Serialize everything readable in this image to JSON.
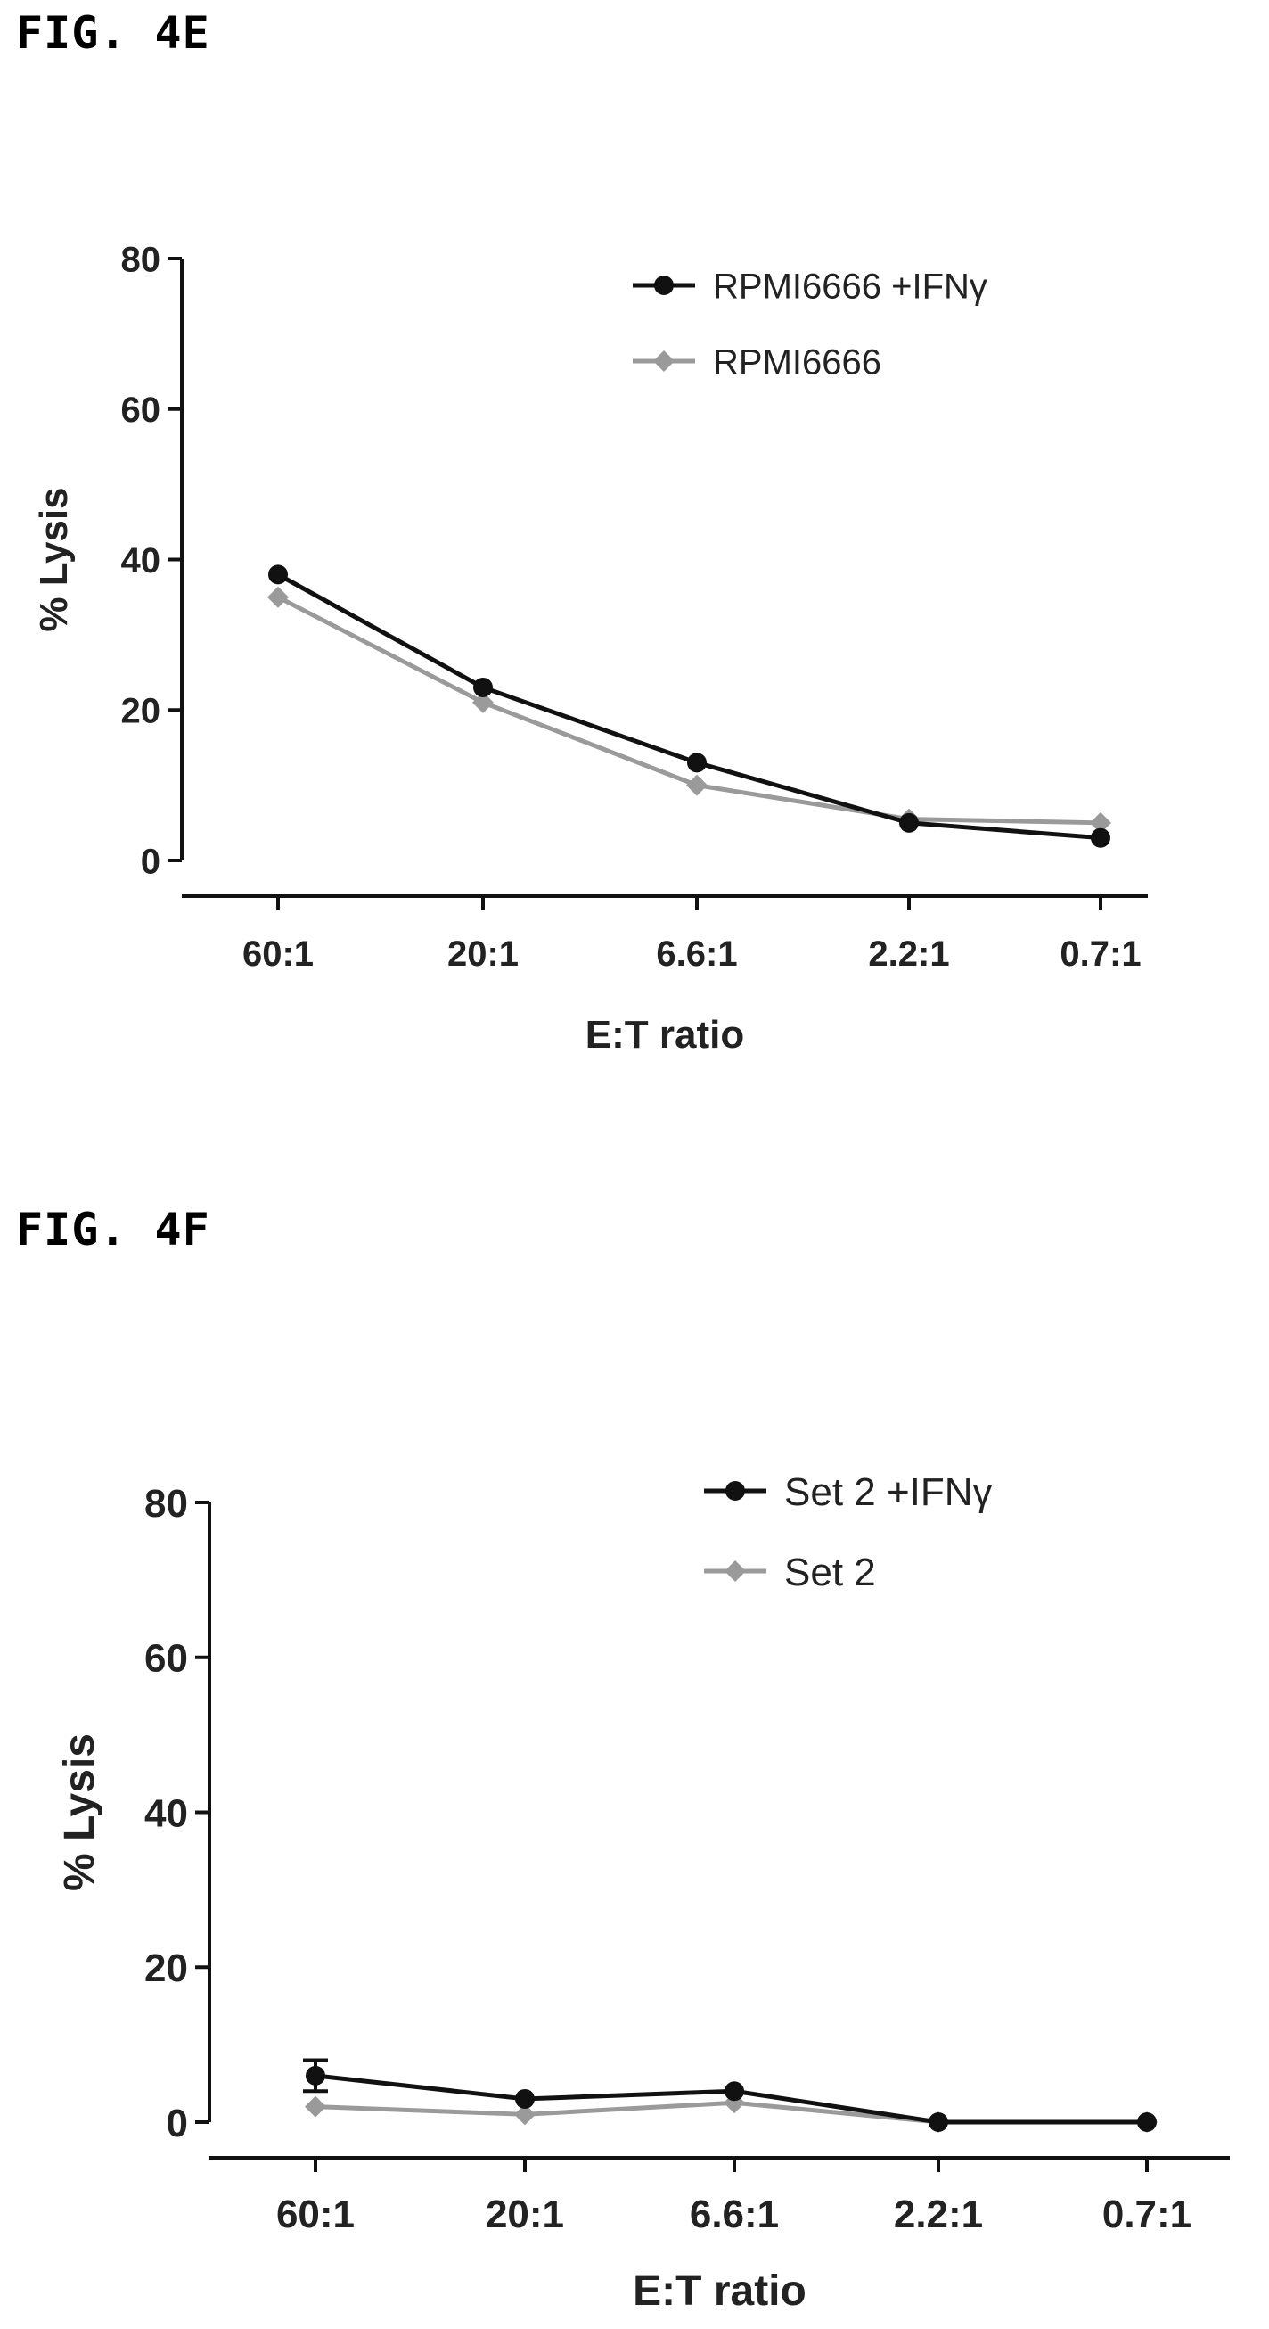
{
  "figures": [
    {
      "label": "FIG. 4E"
    },
    {
      "label": "FIG. 4F"
    }
  ],
  "chart_data": [
    {
      "type": "line",
      "categories": [
        "60:1",
        "20:1",
        "6.6:1",
        "2.2:1",
        "0.7:1"
      ],
      "series": [
        {
          "name": "RPMI6666 +IFNγ",
          "color": "#111111",
          "marker": "circle",
          "values": [
            38,
            23,
            13,
            5,
            3
          ],
          "errors": [
            0,
            0,
            0,
            0,
            0
          ]
        },
        {
          "name": "RPMI6666",
          "color": "#9a9a9a",
          "marker": "diamond",
          "values": [
            35,
            21,
            10,
            5.5,
            5
          ],
          "errors": [
            0,
            0,
            0,
            0,
            0
          ]
        }
      ],
      "xlabel": "E:T ratio",
      "ylabel": "% Lysis",
      "ylim": [
        0,
        80
      ],
      "yticks": [
        "0",
        "20",
        "40",
        "60",
        "80"
      ],
      "legend": "top-right",
      "grid": false
    },
    {
      "type": "line",
      "categories": [
        "60:1",
        "20:1",
        "6.6:1",
        "2.2:1",
        "0.7:1"
      ],
      "series": [
        {
          "name": "Set 2 +IFNγ",
          "color": "#111111",
          "marker": "circle",
          "values": [
            6,
            3,
            4,
            0,
            0
          ],
          "errors": [
            2,
            0,
            0,
            0,
            0
          ]
        },
        {
          "name": "Set 2",
          "color": "#9a9a9a",
          "marker": "diamond",
          "values": [
            2,
            1,
            2.5,
            0,
            0
          ],
          "errors": [
            0,
            0,
            0,
            0,
            0
          ]
        }
      ],
      "xlabel": "E:T ratio",
      "ylabel": "% Lysis",
      "ylim": [
        0,
        80
      ],
      "yticks": [
        "0",
        "20",
        "40",
        "60",
        "80"
      ],
      "legend": "top-right",
      "grid": false
    }
  ]
}
